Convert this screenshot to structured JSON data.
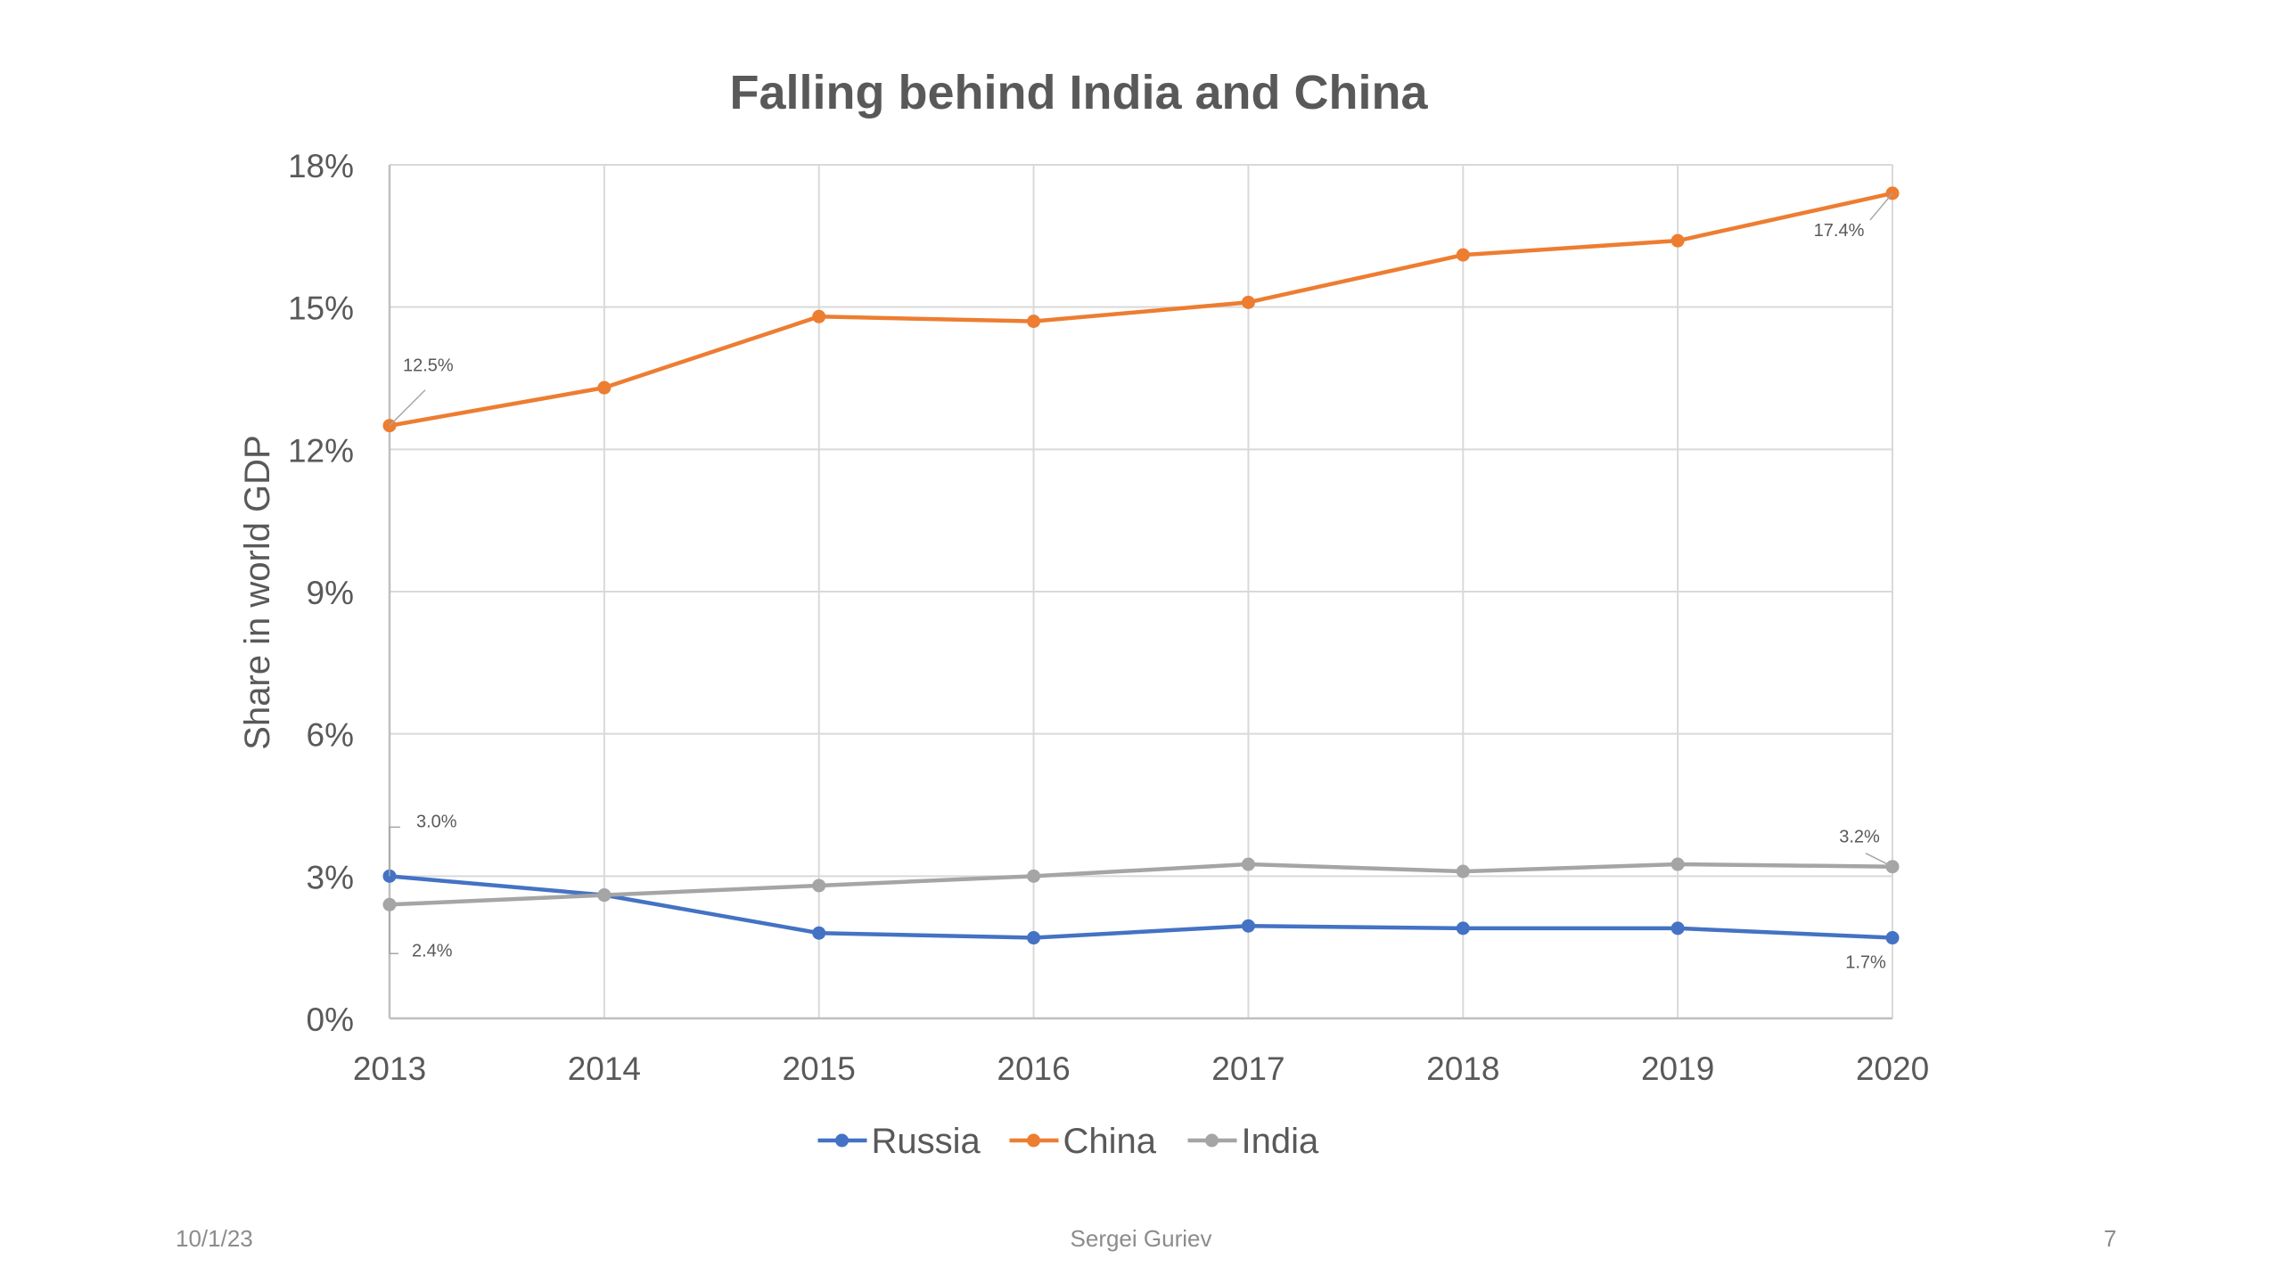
{
  "chart_data": {
    "type": "line",
    "title": "Falling behind India and China",
    "xlabel": "",
    "ylabel": "Share in world GDP",
    "x": [
      "2013",
      "2014",
      "2015",
      "2016",
      "2017",
      "2018",
      "2019",
      "2020"
    ],
    "ylim": [
      0,
      18
    ],
    "yticks": [
      0,
      3,
      6,
      9,
      12,
      15,
      18
    ],
    "ytick_labels": [
      "0%",
      "3%",
      "6%",
      "9%",
      "12%",
      "15%",
      "18%"
    ],
    "grid": true,
    "legend_position": "bottom",
    "series": [
      {
        "name": "Russia",
        "color": "#4472c4",
        "values": [
          3.0,
          2.6,
          1.8,
          1.7,
          1.95,
          1.9,
          1.9,
          1.7
        ]
      },
      {
        "name": "China",
        "color": "#ed7d31",
        "values": [
          12.5,
          13.3,
          14.8,
          14.7,
          15.1,
          16.1,
          16.4,
          17.4
        ]
      },
      {
        "name": "India",
        "color": "#a5a5a5",
        "values": [
          2.4,
          2.6,
          2.8,
          3.0,
          3.25,
          3.1,
          3.25,
          3.2
        ]
      }
    ],
    "annotations": [
      {
        "series": "China",
        "index": 0,
        "text": "12.5%"
      },
      {
        "series": "China",
        "index": 7,
        "text": "17.4%"
      },
      {
        "series": "Russia",
        "index": 0,
        "text": "3.0%"
      },
      {
        "series": "Russia",
        "index": 7,
        "text": "1.7%"
      },
      {
        "series": "India",
        "index": 0,
        "text": "2.4%"
      },
      {
        "series": "India",
        "index": 7,
        "text": "3.2%"
      }
    ]
  },
  "footer": {
    "date": "10/1/23",
    "author": "Sergei Guriev",
    "page": "7"
  }
}
